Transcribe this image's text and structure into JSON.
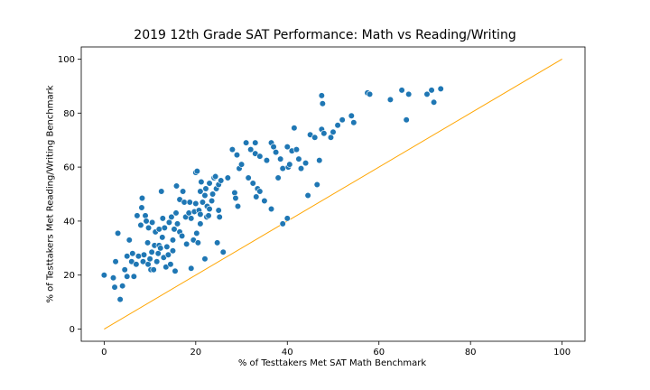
{
  "chart_data": {
    "type": "scatter",
    "title": "2019 12th Grade SAT Performance: Math vs Reading/Writing",
    "xlabel": "% of Testtakers Met SAT Math Benchmark",
    "ylabel": "% of Testtakers Met Reading/Writing Benchmark",
    "xlim": [
      -5,
      105
    ],
    "ylim": [
      -4.5,
      104.5
    ],
    "xticks": [
      0,
      20,
      40,
      60,
      80,
      100
    ],
    "yticks": [
      0,
      20,
      40,
      60,
      80,
      100
    ],
    "grid": false,
    "reference_line": {
      "x": [
        0,
        100
      ],
      "y": [
        0,
        100
      ],
      "color": "#ffa500"
    },
    "point_color": "#1f77b4",
    "points": [
      [
        0,
        20
      ],
      [
        2,
        19
      ],
      [
        2.3,
        15.5
      ],
      [
        2.5,
        25
      ],
      [
        3,
        35.5
      ],
      [
        3.5,
        11
      ],
      [
        4,
        16
      ],
      [
        4.5,
        22
      ],
      [
        5,
        27
      ],
      [
        5,
        19.5
      ],
      [
        5.5,
        33
      ],
      [
        6,
        25
      ],
      [
        6.2,
        28
      ],
      [
        6.5,
        19.5
      ],
      [
        7,
        24
      ],
      [
        7.2,
        42
      ],
      [
        7.5,
        27
      ],
      [
        8,
        38.5
      ],
      [
        8.2,
        45
      ],
      [
        8.3,
        48.5
      ],
      [
        8.5,
        25
      ],
      [
        8.7,
        27.5
      ],
      [
        9,
        42
      ],
      [
        9.2,
        40
      ],
      [
        9.5,
        32
      ],
      [
        9.6,
        24
      ],
      [
        9.7,
        37.5
      ],
      [
        10,
        26
      ],
      [
        10.2,
        22
      ],
      [
        10.4,
        28.5
      ],
      [
        10.5,
        39.5
      ],
      [
        10.8,
        22
      ],
      [
        11,
        31
      ],
      [
        11.2,
        36
      ],
      [
        11.5,
        25
      ],
      [
        11.8,
        28
      ],
      [
        12,
        31
      ],
      [
        12,
        37
      ],
      [
        12.3,
        30
      ],
      [
        12.5,
        51
      ],
      [
        12.7,
        34
      ],
      [
        12.8,
        41
      ],
      [
        13,
        26.5
      ],
      [
        13.2,
        37.5
      ],
      [
        13.5,
        23
      ],
      [
        13.7,
        30.5
      ],
      [
        14,
        27.5
      ],
      [
        14.2,
        39.5
      ],
      [
        14.5,
        24
      ],
      [
        14.7,
        41.5
      ],
      [
        15,
        33
      ],
      [
        15,
        29
      ],
      [
        15.3,
        37
      ],
      [
        15.5,
        21.5
      ],
      [
        15.7,
        43
      ],
      [
        15.8,
        53
      ],
      [
        16,
        39
      ],
      [
        16.5,
        48
      ],
      [
        16.5,
        36
      ],
      [
        17,
        34.5
      ],
      [
        17.2,
        51
      ],
      [
        17.5,
        47
      ],
      [
        17.8,
        41.5
      ],
      [
        18,
        31.5
      ],
      [
        18.5,
        43
      ],
      [
        18.7,
        47
      ],
      [
        19,
        22.5
      ],
      [
        19,
        41
      ],
      [
        19.5,
        33
      ],
      [
        19.7,
        43.5
      ],
      [
        20,
        46.5
      ],
      [
        20,
        58
      ],
      [
        20.2,
        35.5
      ],
      [
        20.3,
        58.5
      ],
      [
        20.5,
        32
      ],
      [
        20.7,
        44
      ],
      [
        21,
        39
      ],
      [
        21,
        42.5
      ],
      [
        21,
        51
      ],
      [
        21.2,
        54.5
      ],
      [
        21.5,
        47
      ],
      [
        22,
        26
      ],
      [
        22,
        49.5
      ],
      [
        22.2,
        52
      ],
      [
        22.4,
        41.5
      ],
      [
        22.5,
        45.5
      ],
      [
        22.8,
        42
      ],
      [
        23,
        54
      ],
      [
        23,
        44.5
      ],
      [
        23.5,
        47.5
      ],
      [
        23.7,
        50
      ],
      [
        24,
        56
      ],
      [
        24.3,
        56.5
      ],
      [
        24.5,
        52
      ],
      [
        24.7,
        32
      ],
      [
        25,
        53.5
      ],
      [
        25,
        44
      ],
      [
        25.2,
        41.5
      ],
      [
        25.5,
        55
      ],
      [
        26,
        28.5
      ],
      [
        27,
        56
      ],
      [
        28,
        66.5
      ],
      [
        28.5,
        50.5
      ],
      [
        28.7,
        48.5
      ],
      [
        29,
        64.5
      ],
      [
        29.2,
        45.5
      ],
      [
        29.5,
        59.5
      ],
      [
        30,
        61
      ],
      [
        31,
        69
      ],
      [
        31.5,
        56
      ],
      [
        32,
        66.5
      ],
      [
        32.5,
        54
      ],
      [
        33,
        69
      ],
      [
        33,
        65
      ],
      [
        33.2,
        49
      ],
      [
        33.5,
        52
      ],
      [
        34,
        64
      ],
      [
        34,
        51
      ],
      [
        35,
        47.5
      ],
      [
        35.5,
        62.5
      ],
      [
        36.5,
        44.5
      ],
      [
        36.5,
        69
      ],
      [
        37,
        67.5
      ],
      [
        37.5,
        65.5
      ],
      [
        38,
        56
      ],
      [
        38.5,
        63
      ],
      [
        39,
        59.5
      ],
      [
        39,
        39
      ],
      [
        40,
        41
      ],
      [
        40,
        67.5
      ],
      [
        40.2,
        60
      ],
      [
        40.5,
        61
      ],
      [
        41,
        66
      ],
      [
        41.5,
        74.5
      ],
      [
        42,
        66.5
      ],
      [
        42.5,
        63
      ],
      [
        43,
        59.5
      ],
      [
        44,
        61.5
      ],
      [
        44.5,
        49.5
      ],
      [
        45,
        72
      ],
      [
        46,
        71
      ],
      [
        46.5,
        53.5
      ],
      [
        47,
        62.5
      ],
      [
        47.5,
        74
      ],
      [
        47.5,
        86.5
      ],
      [
        47.7,
        83.5
      ],
      [
        48,
        72.5
      ],
      [
        49.5,
        71
      ],
      [
        50,
        73
      ],
      [
        51,
        75.5
      ],
      [
        52,
        77.5
      ],
      [
        54,
        79
      ],
      [
        54.5,
        76.5
      ],
      [
        57.5,
        87.5
      ],
      [
        58,
        87
      ],
      [
        62.5,
        85
      ],
      [
        65,
        88.5
      ],
      [
        66,
        77.5
      ],
      [
        66.5,
        87
      ],
      [
        70.5,
        87
      ],
      [
        71.5,
        88.5
      ],
      [
        72,
        84
      ],
      [
        73.5,
        89
      ]
    ]
  }
}
